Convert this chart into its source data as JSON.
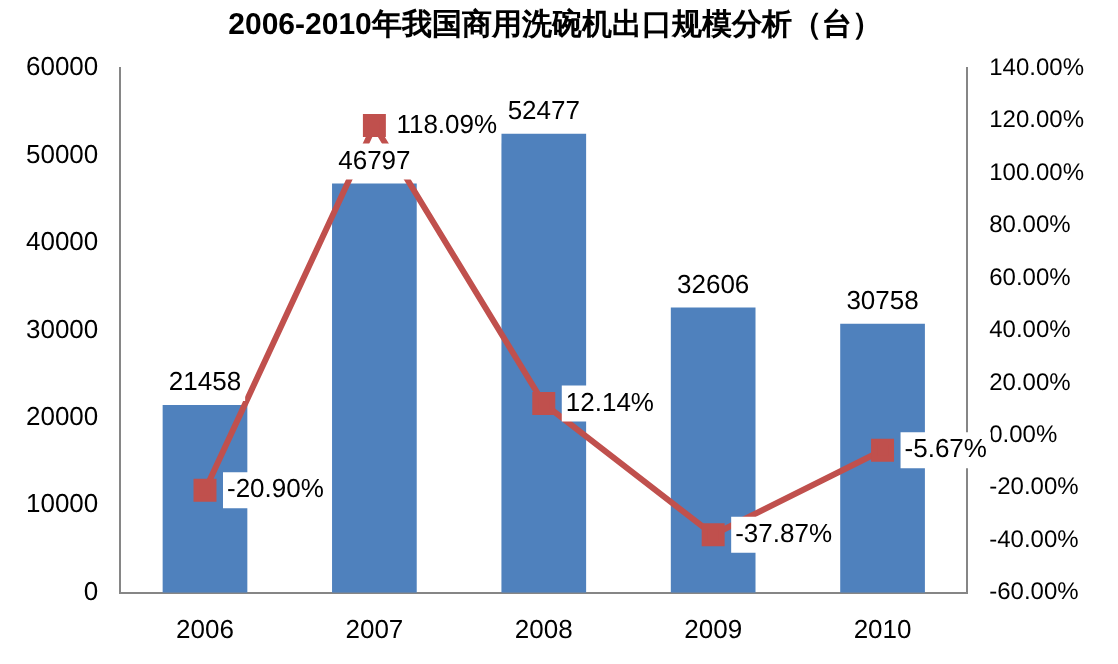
{
  "chart_data": {
    "type": "bar",
    "title": "2006-2010年我国商用洗碗机出口规模分析（台）",
    "categories": [
      "2006",
      "2007",
      "2008",
      "2009",
      "2010"
    ],
    "series": [
      {
        "color": "#4f81bd",
        "values": [
          21458,
          46797,
          52477,
          32606,
          30758
        ],
        "value_labels": [
          "21458",
          "46797",
          "52477",
          "32606",
          "30758"
        ]
      },
      {
        "type": "line",
        "axis": "y2",
        "color": "#c0504d",
        "values": [
          -20.9,
          118.09,
          12.14,
          -37.87,
          -5.67
        ],
        "value_labels": [
          "-20.90%",
          "118.09%",
          "12.14%",
          "-37.87%",
          "-5.67%"
        ]
      }
    ],
    "ylim": [
      0,
      60000
    ],
    "yticks": [
      0,
      10000,
      20000,
      30000,
      40000,
      50000,
      60000
    ],
    "y2lim": [
      -60,
      140
    ],
    "y2ticks": [
      {
        "value": -60,
        "label": "-60.00%"
      },
      {
        "value": -40,
        "label": "-40.00%"
      },
      {
        "value": -20,
        "label": "-20.00%"
      },
      {
        "value": 0,
        "label": "0.00%"
      },
      {
        "value": 20,
        "label": "20.00%"
      },
      {
        "value": 40,
        "label": "40.00%"
      },
      {
        "value": 60,
        "label": "60.00%"
      },
      {
        "value": 80,
        "label": "80.00%"
      },
      {
        "value": 100,
        "label": "100.00%"
      },
      {
        "value": 120,
        "label": "120.00%"
      },
      {
        "value": 140,
        "label": "140.00%"
      }
    ],
    "marker": "square",
    "legend": false
  }
}
